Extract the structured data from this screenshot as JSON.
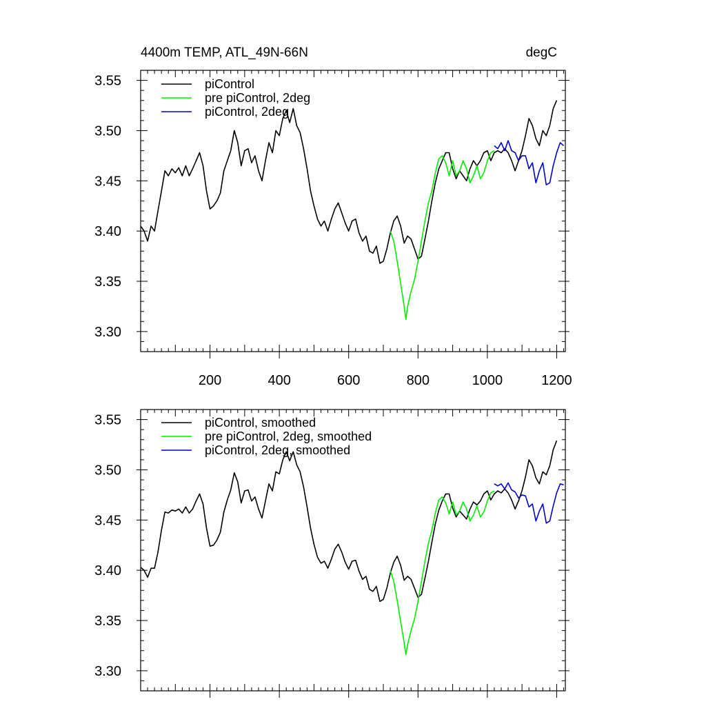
{
  "chart_data": [
    {
      "type": "line",
      "title_left": "4400m TEMP, ATL_49N-66N",
      "title_right": "degC",
      "xlim": [
        0,
        1225
      ],
      "ylim": [
        3.28,
        3.56
      ],
      "xticks": [
        200,
        400,
        600,
        800,
        1000,
        1200
      ],
      "yticks": [
        3.3,
        3.35,
        3.4,
        3.45,
        3.5,
        3.55
      ],
      "ytick_labels": [
        "3.30",
        "3.35",
        "3.40",
        "3.45",
        "3.50",
        "3.55"
      ],
      "legend_position": "top-left",
      "series": [
        {
          "name": "piControl",
          "color": "#000000",
          "x": [
            0,
            10,
            20,
            30,
            40,
            50,
            60,
            70,
            80,
            90,
            100,
            110,
            120,
            130,
            140,
            150,
            160,
            170,
            180,
            190,
            200,
            210,
            220,
            230,
            240,
            250,
            260,
            270,
            280,
            290,
            300,
            310,
            320,
            330,
            340,
            350,
            360,
            370,
            380,
            390,
            400,
            410,
            420,
            430,
            440,
            450,
            460,
            470,
            480,
            490,
            500,
            510,
            520,
            530,
            540,
            550,
            560,
            570,
            580,
            590,
            600,
            610,
            620,
            630,
            640,
            650,
            660,
            670,
            680,
            690,
            700,
            710,
            720,
            730,
            740,
            750,
            760,
            770,
            780,
            790,
            800,
            810,
            820,
            830,
            840,
            850,
            860,
            870,
            880,
            890,
            900,
            910,
            920,
            930,
            940,
            950,
            960,
            970,
            980,
            990,
            1000,
            1010,
            1020,
            1030,
            1040,
            1050,
            1060,
            1070,
            1080,
            1090,
            1100,
            1110,
            1120,
            1130,
            1140,
            1150,
            1160,
            1170,
            1180,
            1190,
            1200
          ],
          "y": [
            3.405,
            3.4,
            3.39,
            3.405,
            3.4,
            3.42,
            3.44,
            3.46,
            3.455,
            3.462,
            3.458,
            3.463,
            3.455,
            3.465,
            3.455,
            3.462,
            3.47,
            3.478,
            3.465,
            3.44,
            3.422,
            3.425,
            3.43,
            3.438,
            3.46,
            3.47,
            3.48,
            3.5,
            3.488,
            3.465,
            3.48,
            3.482,
            3.468,
            3.475,
            3.46,
            3.45,
            3.47,
            3.488,
            3.478,
            3.5,
            3.495,
            3.512,
            3.52,
            3.508,
            3.522,
            3.505,
            3.498,
            3.482,
            3.462,
            3.44,
            3.425,
            3.412,
            3.405,
            3.41,
            3.4,
            3.412,
            3.422,
            3.428,
            3.418,
            3.408,
            3.4,
            3.41,
            3.412,
            3.398,
            3.39,
            3.395,
            3.38,
            3.378,
            3.385,
            3.368,
            3.37,
            3.382,
            3.398,
            3.41,
            3.415,
            3.405,
            3.388,
            3.395,
            3.392,
            3.382,
            3.372,
            3.375,
            3.392,
            3.41,
            3.43,
            3.448,
            3.462,
            3.47,
            3.478,
            3.478,
            3.462,
            3.452,
            3.46,
            3.455,
            3.45,
            3.462,
            3.47,
            3.465,
            3.47,
            3.478,
            3.48,
            3.47,
            3.478,
            3.48,
            3.478,
            3.482,
            3.478,
            3.47,
            3.46,
            3.47,
            3.48,
            3.495,
            3.512,
            3.505,
            3.492,
            3.485,
            3.5,
            3.495,
            3.505,
            3.522,
            3.53
          ]
        },
        {
          "name": "pre piControl, 2deg",
          "color": "#00ee00",
          "x": [
            720,
            730,
            740,
            750,
            760,
            765,
            770,
            780,
            790,
            800,
            810,
            820,
            830,
            840,
            850,
            860,
            870,
            880,
            890,
            900,
            910,
            920,
            930,
            940,
            950,
            960,
            970,
            980,
            990,
            1000,
            1010,
            1020
          ],
          "y": [
            3.4,
            3.39,
            3.37,
            3.348,
            3.325,
            3.312,
            3.325,
            3.34,
            3.352,
            3.37,
            3.39,
            3.41,
            3.428,
            3.44,
            3.458,
            3.472,
            3.475,
            3.468,
            3.455,
            3.47,
            3.455,
            3.46,
            3.47,
            3.462,
            3.448,
            3.455,
            3.465,
            3.452,
            3.458,
            3.47,
            3.478,
            3.48
          ]
        },
        {
          "name": "piControl, 2deg",
          "color": "#0000cc",
          "x": [
            1020,
            1030,
            1040,
            1050,
            1060,
            1070,
            1080,
            1090,
            1100,
            1110,
            1120,
            1130,
            1140,
            1150,
            1160,
            1170,
            1180,
            1190,
            1200,
            1210,
            1220
          ],
          "y": [
            3.485,
            3.482,
            3.488,
            3.48,
            3.49,
            3.48,
            3.478,
            3.47,
            3.475,
            3.475,
            3.462,
            3.468,
            3.448,
            3.46,
            3.468,
            3.446,
            3.448,
            3.465,
            3.478,
            3.488,
            3.485
          ]
        }
      ]
    },
    {
      "type": "line",
      "xlim": [
        0,
        1225
      ],
      "ylim": [
        3.28,
        3.56
      ],
      "xticks": [
        200,
        400,
        600,
        800,
        1000,
        1200
      ],
      "yticks": [
        3.3,
        3.35,
        3.4,
        3.45,
        3.5,
        3.55
      ],
      "ytick_labels": [
        "3.30",
        "3.35",
        "3.40",
        "3.45",
        "3.50",
        "3.55"
      ],
      "legend_position": "top-left",
      "series": [
        {
          "name": "piControl, smoothed",
          "color": "#000000",
          "x": [
            0,
            10,
            20,
            30,
            40,
            50,
            60,
            70,
            80,
            90,
            100,
            110,
            120,
            130,
            140,
            150,
            160,
            170,
            180,
            190,
            200,
            210,
            220,
            230,
            240,
            250,
            260,
            270,
            280,
            290,
            300,
            310,
            320,
            330,
            340,
            350,
            360,
            370,
            380,
            390,
            400,
            410,
            420,
            430,
            440,
            450,
            460,
            470,
            480,
            490,
            500,
            510,
            520,
            530,
            540,
            550,
            560,
            570,
            580,
            590,
            600,
            610,
            620,
            630,
            640,
            650,
            660,
            670,
            680,
            690,
            700,
            710,
            720,
            730,
            740,
            750,
            760,
            770,
            780,
            790,
            800,
            810,
            820,
            830,
            840,
            850,
            860,
            870,
            880,
            890,
            900,
            910,
            920,
            930,
            940,
            950,
            960,
            970,
            980,
            990,
            1000,
            1010,
            1020,
            1030,
            1040,
            1050,
            1060,
            1070,
            1080,
            1090,
            1100,
            1110,
            1120,
            1130,
            1140,
            1150,
            1160,
            1170,
            1180,
            1190,
            1200
          ],
          "y": [
            3.403,
            3.4,
            3.393,
            3.402,
            3.402,
            3.418,
            3.44,
            3.458,
            3.457,
            3.46,
            3.459,
            3.461,
            3.457,
            3.463,
            3.457,
            3.461,
            3.469,
            3.476,
            3.466,
            3.442,
            3.424,
            3.425,
            3.43,
            3.438,
            3.458,
            3.47,
            3.48,
            3.497,
            3.488,
            3.467,
            3.479,
            3.48,
            3.469,
            3.473,
            3.461,
            3.452,
            3.469,
            3.486,
            3.479,
            3.498,
            3.496,
            3.51,
            3.518,
            3.509,
            3.518,
            3.505,
            3.498,
            3.483,
            3.463,
            3.442,
            3.426,
            3.413,
            3.407,
            3.409,
            3.402,
            3.411,
            3.421,
            3.426,
            3.418,
            3.408,
            3.401,
            3.409,
            3.41,
            3.399,
            3.391,
            3.394,
            3.381,
            3.379,
            3.384,
            3.369,
            3.371,
            3.382,
            3.397,
            3.408,
            3.414,
            3.405,
            3.39,
            3.394,
            3.391,
            3.382,
            3.373,
            3.376,
            3.392,
            3.409,
            3.428,
            3.446,
            3.46,
            3.469,
            3.476,
            3.476,
            3.462,
            3.453,
            3.459,
            3.455,
            3.451,
            3.461,
            3.468,
            3.465,
            3.469,
            3.476,
            3.479,
            3.47,
            3.476,
            3.479,
            3.477,
            3.481,
            3.477,
            3.47,
            3.461,
            3.469,
            3.479,
            3.493,
            3.51,
            3.504,
            3.492,
            3.486,
            3.498,
            3.495,
            3.504,
            3.52,
            3.529
          ]
        },
        {
          "name": "pre piControl, 2deg, smoothed",
          "color": "#00ee00",
          "x": [
            720,
            730,
            740,
            750,
            760,
            765,
            770,
            780,
            790,
            800,
            810,
            820,
            830,
            840,
            850,
            860,
            870,
            880,
            890,
            900,
            910,
            920,
            930,
            940,
            950,
            960,
            970,
            980,
            990,
            1000,
            1010,
            1020
          ],
          "y": [
            3.4,
            3.389,
            3.37,
            3.349,
            3.328,
            3.316,
            3.326,
            3.34,
            3.352,
            3.369,
            3.389,
            3.409,
            3.427,
            3.44,
            3.457,
            3.47,
            3.473,
            3.467,
            3.456,
            3.468,
            3.455,
            3.459,
            3.468,
            3.461,
            3.449,
            3.455,
            3.464,
            3.453,
            3.458,
            3.469,
            3.477,
            3.479
          ]
        },
        {
          "name": "piControl, 2deg, smoothed",
          "color": "#0000cc",
          "x": [
            1020,
            1030,
            1040,
            1050,
            1060,
            1070,
            1080,
            1090,
            1100,
            1110,
            1120,
            1130,
            1140,
            1150,
            1160,
            1170,
            1180,
            1190,
            1200,
            1210,
            1220
          ],
          "y": [
            3.486,
            3.484,
            3.486,
            3.481,
            3.487,
            3.48,
            3.478,
            3.472,
            3.475,
            3.474,
            3.463,
            3.466,
            3.449,
            3.459,
            3.466,
            3.447,
            3.449,
            3.464,
            3.477,
            3.486,
            3.485
          ]
        }
      ]
    }
  ]
}
